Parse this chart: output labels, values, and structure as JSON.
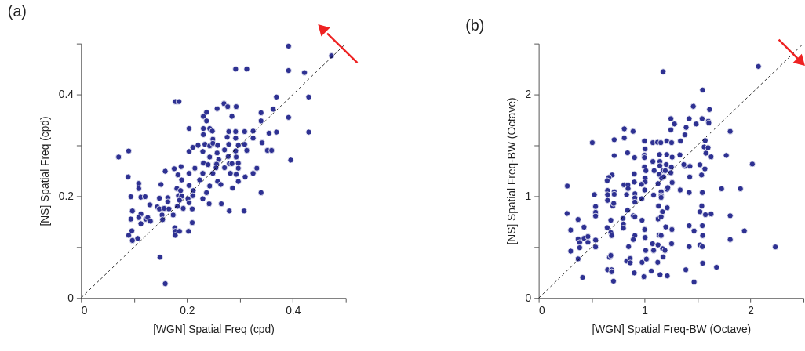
{
  "chart_data": [
    {
      "type": "scatter",
      "title": "(a)",
      "xlabel": "[WGN] Spatial Freq (cpd)",
      "ylabel": "[NS] Spatial Freq (cpd)",
      "xlim": [
        0,
        0.5
      ],
      "ylim": [
        0,
        0.5
      ],
      "xticks": [
        0,
        {
          "value": 0.1,
          "label": null
        },
        0.2,
        {
          "value": 0.3,
          "label": null
        },
        0.4,
        {
          "value": 0.5,
          "label": null
        }
      ],
      "yticks": [
        0,
        {
          "value": 0.1,
          "label": null
        },
        0.2,
        {
          "value": 0.3,
          "label": null
        },
        0.4,
        {
          "value": 0.5,
          "label": null
        }
      ],
      "grid": false,
      "marker": "circle",
      "series": [
        {
          "color": "#2e3192",
          "x": [
            0.392,
            0.473,
            0.292,
            0.313,
            0.392,
            0.422,
            0.369,
            0.43,
            0.178,
            0.185,
            0.27,
            0.277,
            0.293,
            0.257,
            0.237,
            0.231,
            0.285,
            0.34,
            0.363,
            0.392,
            0.237,
            0.34,
            0.204,
            0.231,
            0.243,
            0.248,
            0.279,
            0.292,
            0.309,
            0.325,
            0.355,
            0.369,
            0.43,
            0.231,
            0.276,
            0.292,
            0.325,
            0.249,
            0.234,
            0.243,
            0.249,
            0.258,
            0.221,
            0.204,
            0.211,
            0.279,
            0.297,
            0.309,
            0.342,
            0.23,
            0.257,
            0.271,
            0.292,
            0.313,
            0.352,
            0.36,
            0.396,
            0.071,
            0.09,
            0.243,
            0.26,
            0.278,
            0.293,
            0.231,
            0.24,
            0.256,
            0.28,
            0.297,
            0.285,
            0.189,
            0.215,
            0.176,
            0.159,
            0.255,
            0.271,
            0.297,
            0.332,
            0.089,
            0.183,
            0.204,
            0.23,
            0.249,
            0.282,
            0.293,
            0.31,
            0.325,
            0.109,
            0.151,
            0.19,
            0.224,
            0.258,
            0.297,
            0.109,
            0.243,
            0.264,
            0.204,
            0.181,
            0.188,
            0.212,
            0.237,
            0.34,
            0.286,
            0.094,
            0.113,
            0.121,
            0.148,
            0.164,
            0.184,
            0.19,
            0.202,
            0.211,
            0.23,
            0.13,
            0.164,
            0.186,
            0.204,
            0.242,
            0.265,
            0.144,
            0.148,
            0.157,
            0.182,
            0.193,
            0.21,
            0.097,
            0.28,
            0.308,
            0.166,
            0.174,
            0.113,
            0.109,
            0.094,
            0.122,
            0.126,
            0.131,
            0.153,
            0.154,
            0.113,
            0.21,
            0.096,
            0.177,
            0.178,
            0.186,
            0.203,
            0.09,
            0.178,
            0.107,
            0.097,
            0.149,
            0.159
          ],
          "values": [
            0.495,
            0.476,
            0.45,
            0.45,
            0.447,
            0.443,
            0.395,
            0.395,
            0.386,
            0.386,
            0.382,
            0.376,
            0.376,
            0.372,
            0.365,
            0.357,
            0.357,
            0.364,
            0.371,
            0.355,
            0.348,
            0.348,
            0.333,
            0.333,
            0.333,
            0.328,
            0.327,
            0.327,
            0.327,
            0.328,
            0.324,
            0.326,
            0.326,
            0.321,
            0.316,
            0.314,
            0.314,
            0.312,
            0.302,
            0.299,
            0.304,
            0.3,
            0.3,
            0.288,
            0.296,
            0.302,
            0.3,
            0.302,
            0.305,
            0.288,
            0.285,
            0.291,
            0.289,
            0.29,
            0.29,
            0.29,
            0.271,
            0.277,
            0.289,
            0.277,
            0.272,
            0.278,
            0.277,
            0.265,
            0.262,
            0.263,
            0.264,
            0.265,
            0.264,
            0.258,
            0.255,
            0.254,
            0.249,
            0.256,
            0.256,
            0.255,
            0.255,
            0.238,
            0.242,
            0.245,
            0.245,
            0.245,
            0.245,
            0.243,
            0.238,
            0.245,
            0.225,
            0.223,
            0.232,
            0.232,
            0.229,
            0.229,
            0.215,
            0.22,
            0.223,
            0.221,
            0.215,
            0.211,
            0.211,
            0.207,
            0.207,
            0.216,
            0.199,
            0.198,
            0.199,
            0.196,
            0.197,
            0.201,
            0.2,
            0.195,
            0.201,
            0.195,
            0.183,
            0.189,
            0.192,
            0.187,
            0.185,
            0.185,
            0.179,
            0.175,
            0.176,
            0.18,
            0.176,
            0.175,
            0.171,
            0.171,
            0.171,
            0.175,
            0.163,
            0.165,
            0.158,
            0.155,
            0.155,
            0.158,
            0.151,
            0.163,
            0.154,
            0.146,
            0.148,
            0.132,
            0.138,
            0.131,
            0.131,
            0.131,
            0.123,
            0.123,
            0.117,
            0.113,
            0.08,
            0.028
          ]
        },
        {
          "type": "line",
          "marker": "none",
          "color": "#000000",
          "line_style": "dashed",
          "x": [
            0,
            0.5
          ],
          "values": [
            0,
            0.5
          ]
        }
      ]
    },
    {
      "type": "scatter",
      "title": "(b)",
      "xlabel": "[WGN] Spatial Freq-BW (Octave)",
      "ylabel": "[NS] Spatial Freq-BW (Octave)",
      "xlim": [
        0,
        2.5
      ],
      "ylim": [
        0,
        2.5
      ],
      "xticks": [
        0,
        {
          "value": 0.5,
          "label": null
        },
        1,
        {
          "value": 1.5,
          "label": null
        },
        2,
        {
          "value": 2.5,
          "label": null
        }
      ],
      "yticks": [
        0,
        {
          "value": 0.5,
          "label": null
        },
        1,
        {
          "value": 1.5,
          "label": null
        },
        2,
        {
          "value": 2.5,
          "label": null
        }
      ],
      "grid": false,
      "marker": "circle",
      "series": [
        {
          "color": "#2e3192",
          "x": [
            2.075,
            1.175,
            1.547,
            1.46,
            1.613,
            1.248,
            1.421,
            1.543,
            1.601,
            1.606,
            1.282,
            1.487,
            1.392,
            1.248,
            1.808,
            0.808,
            0.891,
            1.38,
            0.808,
            0.713,
            0.506,
            0.998,
            1.078,
            1.122,
            1.153,
            1.209,
            1.255,
            1.338,
            1.572,
            1.005,
            1.562,
            1.599,
            0.839,
            1.141,
            1.209,
            1.579,
            0.713,
            0.998,
            0.905,
            0.998,
            1.26,
            1.628,
            1.771,
            1.078,
            1.144,
            1.333,
            2.017,
            0.998,
            1.144,
            1.204,
            1.253,
            1.38,
            1.428,
            1.523,
            1.569,
            1.37,
            1.012,
            1.09,
            1.175,
            1.248,
            0.903,
            1.139,
            1.195,
            1.538,
            1.426,
            0.693,
            0.662,
            0.647,
            1.005,
            1.161,
            1.18,
            0.903,
            1.005,
            1.127,
            1.26,
            0.805,
            0.842,
            0.27,
            0.971,
            0.526,
            0.65,
            0.65,
            0.65,
            0.713,
            0.713,
            0.83,
            0.908,
            0.844,
            0.973,
            1.0,
            1.085,
            1.156,
            1.156,
            1.156,
            1.212,
            1.219,
            1.336,
            1.421,
            1.545,
            1.727,
            1.905,
            0.908,
            0.908,
            0.268,
            0.537,
            0.537,
            0.537,
            0.7,
            0.708,
            0.839,
            1.131,
            1.168,
            1.214,
            1.54,
            1.523,
            1.574,
            1.628,
            1.808,
            0.372,
            0.796,
            0.893,
            0.908,
            1.127,
            1.156,
            0.681,
            0.976,
            0.302,
            0.428,
            0.647,
            0.8,
            0.8,
            1.0,
            1.2,
            1.258,
            1.421,
            1.467,
            1.545,
            1.942,
            0.681,
            0.689,
            0.908,
            0.893,
            0.372,
            0.428,
            0.465,
            0.387,
            0.387,
            0.465,
            0.537,
            0.537,
            1.005,
            1.136,
            1.156,
            1.075,
            1.127,
            0.849,
            1.01,
            1.085,
            1.17,
            1.192,
            1.255,
            1.421,
            1.523,
            1.545,
            1.548,
            1.808,
            2.234,
            0.302,
            0.372,
            0.669,
            0.681,
            0.83,
            0.864,
            0.864,
            0.976,
            1.017,
            1.124,
            1.175,
            1.548,
            1.679,
            0.65,
            0.689,
            0.689,
            0.903,
            1.063,
            0.993,
            1.146,
            1.214,
            1.389,
            0.414,
            0.706,
            1.467
          ],
          "values": [
            2.275,
            2.224,
            2.044,
            1.883,
            1.852,
            1.762,
            1.762,
            1.762,
            1.737,
            1.72,
            1.71,
            1.71,
            1.676,
            1.652,
            1.637,
            1.662,
            1.637,
            1.603,
            1.572,
            1.555,
            1.526,
            1.543,
            1.526,
            1.53,
            1.526,
            1.543,
            1.526,
            1.543,
            1.547,
            1.465,
            1.484,
            1.477,
            1.426,
            1.409,
            1.409,
            1.423,
            1.399,
            1.404,
            1.38,
            1.38,
            1.384,
            1.387,
            1.401,
            1.341,
            1.341,
            1.406,
            1.316,
            1.287,
            1.299,
            1.311,
            1.285,
            1.294,
            1.294,
            1.309,
            1.268,
            1.311,
            1.251,
            1.251,
            1.251,
            1.231,
            1.219,
            1.214,
            1.251,
            1.209,
            1.19,
            1.209,
            1.185,
            1.153,
            1.178,
            1.178,
            1.19,
            1.139,
            1.141,
            1.124,
            1.134,
            1.112,
            1.112,
            1.1,
            1.117,
            1.015,
            1.056,
            1.015,
            0.959,
            1.044,
            1.019,
            1.015,
            1.024,
            1.075,
            0.976,
            1.061,
            1.012,
            1.044,
            1.007,
            0.988,
            1.068,
            1.085,
            1.061,
            1.036,
            1.036,
            1.073,
            1.073,
            0.983,
            0.942,
            0.83,
            0.898,
            0.842,
            0.805,
            0.903,
            0.929,
            0.861,
            0.903,
            0.847,
            0.886,
            0.903,
            0.847,
            0.818,
            0.825,
            0.808,
            0.771,
            0.781,
            0.808,
            0.798,
            0.776,
            0.798,
            0.764,
            0.764,
            0.667,
            0.696,
            0.691,
            0.727,
            0.686,
            0.672,
            0.698,
            0.672,
            0.71,
            0.659,
            0.71,
            0.659,
            0.642,
            0.613,
            0.613,
            0.574,
            0.579,
            0.586,
            0.603,
            0.545,
            0.494,
            0.547,
            0.569,
            0.501,
            0.594,
            0.618,
            0.613,
            0.533,
            0.521,
            0.504,
            0.467,
            0.467,
            0.484,
            0.467,
            0.533,
            0.504,
            0.521,
            0.504,
            0.613,
            0.574,
            0.501,
            0.46,
            0.384,
            0.399,
            0.418,
            0.363,
            0.387,
            0.345,
            0.35,
            0.382,
            0.35,
            0.404,
            0.341,
            0.302,
            0.277,
            0.277,
            0.258,
            0.246,
            0.265,
            0.209,
            0.229,
            0.217,
            0.277,
            0.202,
            0.165,
            0.156
          ]
        },
        {
          "type": "line",
          "marker": "none",
          "color": "#000000",
          "line_style": "dashed",
          "x": [
            0,
            2.5
          ],
          "values": [
            0,
            2.5
          ]
        }
      ]
    }
  ]
}
